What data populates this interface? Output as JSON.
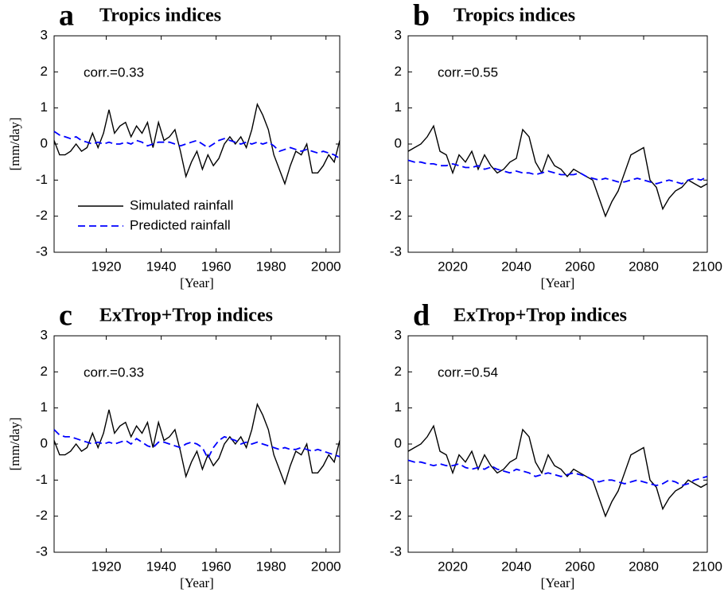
{
  "chart_data": [
    {
      "type": "line",
      "panel": "a",
      "title": "Tropics indices",
      "annotation": "corr.=0.33",
      "xlabel": "[Year]",
      "ylabel": "[mm/day]",
      "legend": "lower left",
      "x": [
        1901,
        1903,
        1905,
        1907,
        1909,
        1911,
        1913,
        1915,
        1917,
        1919,
        1921,
        1923,
        1925,
        1927,
        1929,
        1931,
        1933,
        1935,
        1937,
        1939,
        1941,
        1943,
        1945,
        1947,
        1949,
        1951,
        1953,
        1955,
        1957,
        1959,
        1961,
        1963,
        1965,
        1967,
        1969,
        1971,
        1973,
        1975,
        1977,
        1979,
        1981,
        1983,
        1985,
        1987,
        1989,
        1991,
        1993,
        1995,
        1997,
        1999,
        2001,
        2003,
        2005
      ],
      "series": [
        {
          "name": "Simulated rainfall",
          "color": "#000000",
          "linestyle": "solid",
          "values": [
            0.1,
            -0.3,
            -0.3,
            -0.2,
            0.0,
            -0.2,
            -0.1,
            0.3,
            -0.1,
            0.3,
            0.95,
            0.3,
            0.5,
            0.6,
            0.2,
            0.5,
            0.3,
            0.6,
            -0.1,
            0.6,
            0.1,
            0.2,
            0.4,
            -0.2,
            -0.9,
            -0.5,
            -0.2,
            -0.7,
            -0.3,
            -0.6,
            -0.4,
            0.0,
            0.2,
            0.0,
            0.2,
            -0.1,
            0.4,
            1.1,
            0.8,
            0.4,
            -0.3,
            -0.7,
            -1.1,
            -0.6,
            -0.2,
            -0.3,
            0.0,
            -0.8,
            -0.8,
            -0.6,
            -0.3,
            -0.5,
            0.1
          ]
        },
        {
          "name": "Predicted rainfall",
          "color": "#0000ff",
          "linestyle": "dashed",
          "values": [
            0.35,
            0.25,
            0.2,
            0.15,
            0.2,
            0.1,
            0.05,
            0.0,
            0.05,
            0.0,
            0.05,
            0.0,
            0.0,
            0.05,
            0.0,
            0.1,
            0.05,
            -0.05,
            0.0,
            0.05,
            0.05,
            0.05,
            0.0,
            -0.05,
            0.0,
            0.05,
            0.1,
            0.0,
            -0.1,
            0.0,
            0.1,
            0.15,
            0.1,
            0.05,
            0.0,
            0.05,
            0.0,
            0.05,
            0.0,
            0.05,
            -0.05,
            -0.2,
            -0.15,
            -0.1,
            -0.15,
            -0.2,
            -0.15,
            -0.2,
            -0.25,
            -0.2,
            -0.25,
            -0.3,
            -0.4
          ]
        }
      ],
      "xlim": [
        1901,
        2005
      ],
      "xticks": [
        1920,
        1940,
        1960,
        1980,
        2000
      ],
      "ylim": [
        -3,
        3
      ],
      "yticks": [
        -3,
        -2,
        -1,
        0,
        1,
        2,
        3
      ]
    },
    {
      "type": "line",
      "panel": "b",
      "title": "Tropics indices",
      "annotation": "corr.=0.55",
      "xlabel": "[Year]",
      "x": [
        2006,
        2008,
        2010,
        2012,
        2014,
        2016,
        2018,
        2020,
        2022,
        2024,
        2026,
        2028,
        2030,
        2032,
        2034,
        2036,
        2038,
        2040,
        2042,
        2044,
        2046,
        2048,
        2050,
        2052,
        2054,
        2056,
        2058,
        2060,
        2062,
        2064,
        2066,
        2068,
        2070,
        2072,
        2074,
        2076,
        2078,
        2080,
        2082,
        2084,
        2086,
        2088,
        2090,
        2092,
        2094,
        2096,
        2098,
        2100
      ],
      "series": [
        {
          "color": "#000000",
          "linestyle": "solid",
          "values": [
            -0.2,
            -0.1,
            0.0,
            0.2,
            0.5,
            -0.2,
            -0.3,
            -0.8,
            -0.3,
            -0.5,
            -0.2,
            -0.7,
            -0.3,
            -0.6,
            -0.8,
            -0.7,
            -0.5,
            -0.4,
            0.4,
            0.2,
            -0.5,
            -0.8,
            -0.3,
            -0.6,
            -0.7,
            -0.9,
            -0.7,
            -0.8,
            -0.9,
            -1.0,
            -1.5,
            -2.0,
            -1.6,
            -1.3,
            -0.8,
            -0.3,
            -0.2,
            -0.1,
            -1.0,
            -1.2,
            -1.8,
            -1.5,
            -1.3,
            -1.2,
            -1.0,
            -1.1,
            -1.2,
            -1.1
          ]
        },
        {
          "color": "#0000ff",
          "linestyle": "dashed",
          "values": [
            -0.45,
            -0.5,
            -0.5,
            -0.55,
            -0.55,
            -0.6,
            -0.6,
            -0.55,
            -0.6,
            -0.65,
            -0.65,
            -0.6,
            -0.7,
            -0.65,
            -0.7,
            -0.75,
            -0.8,
            -0.75,
            -0.8,
            -0.8,
            -0.85,
            -0.8,
            -0.75,
            -0.8,
            -0.85,
            -0.85,
            -0.85,
            -0.8,
            -0.9,
            -0.95,
            -1.0,
            -0.95,
            -1.0,
            -1.05,
            -1.05,
            -1.0,
            -0.95,
            -1.0,
            -1.05,
            -1.1,
            -1.05,
            -1.0,
            -1.05,
            -1.1,
            -1.0,
            -0.95,
            -1.0,
            -0.9
          ]
        }
      ],
      "xlim": [
        2006,
        2100
      ],
      "xticks": [
        2020,
        2040,
        2060,
        2080,
        2100
      ],
      "ylim": [
        -3,
        3
      ],
      "yticks": [
        -3,
        -2,
        -1,
        0,
        1,
        2,
        3
      ]
    },
    {
      "type": "line",
      "panel": "c",
      "title": "ExTrop+Trop indices",
      "annotation": "corr.=0.33",
      "xlabel": "[Year]",
      "ylabel": "[mm/day]",
      "x": [
        1901,
        1903,
        1905,
        1907,
        1909,
        1911,
        1913,
        1915,
        1917,
        1919,
        1921,
        1923,
        1925,
        1927,
        1929,
        1931,
        1933,
        1935,
        1937,
        1939,
        1941,
        1943,
        1945,
        1947,
        1949,
        1951,
        1953,
        1955,
        1957,
        1959,
        1961,
        1963,
        1965,
        1967,
        1969,
        1971,
        1973,
        1975,
        1977,
        1979,
        1981,
        1983,
        1985,
        1987,
        1989,
        1991,
        1993,
        1995,
        1997,
        1999,
        2001,
        2003,
        2005
      ],
      "series": [
        {
          "color": "#000000",
          "linestyle": "solid",
          "values": [
            0.1,
            -0.3,
            -0.3,
            -0.2,
            0.0,
            -0.2,
            -0.1,
            0.3,
            -0.1,
            0.3,
            0.95,
            0.3,
            0.5,
            0.6,
            0.2,
            0.5,
            0.3,
            0.6,
            -0.1,
            0.6,
            0.1,
            0.2,
            0.4,
            -0.2,
            -0.9,
            -0.5,
            -0.2,
            -0.7,
            -0.3,
            -0.6,
            -0.4,
            0.0,
            0.2,
            0.0,
            0.2,
            -0.1,
            0.4,
            1.1,
            0.8,
            0.4,
            -0.3,
            -0.7,
            -1.1,
            -0.6,
            -0.2,
            -0.3,
            0.0,
            -0.8,
            -0.8,
            -0.6,
            -0.3,
            -0.5,
            0.1
          ]
        },
        {
          "color": "#0000ff",
          "linestyle": "dashed",
          "values": [
            0.4,
            0.25,
            0.2,
            0.2,
            0.15,
            0.1,
            0.05,
            0.0,
            0.05,
            0.0,
            0.05,
            0.0,
            0.05,
            0.1,
            0.0,
            0.15,
            0.05,
            -0.05,
            -0.1,
            0.05,
            0.05,
            0.0,
            -0.05,
            -0.1,
            0.0,
            0.05,
            0.0,
            -0.1,
            -0.4,
            -0.1,
            0.1,
            0.2,
            0.15,
            0.1,
            0.0,
            0.05,
            0.0,
            0.05,
            0.0,
            -0.05,
            -0.1,
            -0.15,
            -0.1,
            -0.15,
            -0.15,
            -0.1,
            -0.15,
            -0.2,
            -0.15,
            -0.2,
            -0.25,
            -0.3,
            -0.35
          ]
        }
      ],
      "xlim": [
        1901,
        2005
      ],
      "xticks": [
        1920,
        1940,
        1960,
        1980,
        2000
      ],
      "ylim": [
        -3,
        3
      ],
      "yticks": [
        -3,
        -2,
        -1,
        0,
        1,
        2,
        3
      ]
    },
    {
      "type": "line",
      "panel": "d",
      "title": "ExTrop+Trop indices",
      "annotation": "corr.=0.54",
      "xlabel": "[Year]",
      "x": [
        2006,
        2008,
        2010,
        2012,
        2014,
        2016,
        2018,
        2020,
        2022,
        2024,
        2026,
        2028,
        2030,
        2032,
        2034,
        2036,
        2038,
        2040,
        2042,
        2044,
        2046,
        2048,
        2050,
        2052,
        2054,
        2056,
        2058,
        2060,
        2062,
        2064,
        2066,
        2068,
        2070,
        2072,
        2074,
        2076,
        2078,
        2080,
        2082,
        2084,
        2086,
        2088,
        2090,
        2092,
        2094,
        2096,
        2098,
        2100
      ],
      "series": [
        {
          "color": "#000000",
          "linestyle": "solid",
          "values": [
            -0.2,
            -0.1,
            0.0,
            0.2,
            0.5,
            -0.2,
            -0.3,
            -0.8,
            -0.3,
            -0.5,
            -0.2,
            -0.7,
            -0.3,
            -0.6,
            -0.8,
            -0.7,
            -0.5,
            -0.4,
            0.4,
            0.2,
            -0.5,
            -0.8,
            -0.3,
            -0.6,
            -0.7,
            -0.9,
            -0.7,
            -0.8,
            -0.9,
            -1.0,
            -1.5,
            -2.0,
            -1.6,
            -1.3,
            -0.8,
            -0.3,
            -0.2,
            -0.1,
            -1.0,
            -1.2,
            -1.8,
            -1.5,
            -1.3,
            -1.2,
            -1.0,
            -1.1,
            -1.2,
            -1.1
          ]
        },
        {
          "color": "#0000ff",
          "linestyle": "dashed",
          "values": [
            -0.45,
            -0.5,
            -0.5,
            -0.55,
            -0.6,
            -0.55,
            -0.6,
            -0.6,
            -0.55,
            -0.65,
            -0.7,
            -0.65,
            -0.7,
            -0.6,
            -0.7,
            -0.75,
            -0.8,
            -0.7,
            -0.75,
            -0.8,
            -0.9,
            -0.85,
            -0.8,
            -0.85,
            -0.9,
            -0.85,
            -0.8,
            -0.85,
            -0.9,
            -1.0,
            -1.05,
            -1.0,
            -1.0,
            -1.05,
            -1.1,
            -1.05,
            -1.0,
            -1.05,
            -1.1,
            -1.15,
            -1.1,
            -1.0,
            -1.05,
            -1.15,
            -1.1,
            -1.0,
            -0.95,
            -0.9
          ]
        }
      ],
      "xlim": [
        2006,
        2100
      ],
      "xticks": [
        2020,
        2040,
        2060,
        2080,
        2100
      ],
      "ylim": [
        -3,
        3
      ],
      "yticks": [
        -3,
        -2,
        -1,
        0,
        1,
        2,
        3
      ]
    }
  ]
}
